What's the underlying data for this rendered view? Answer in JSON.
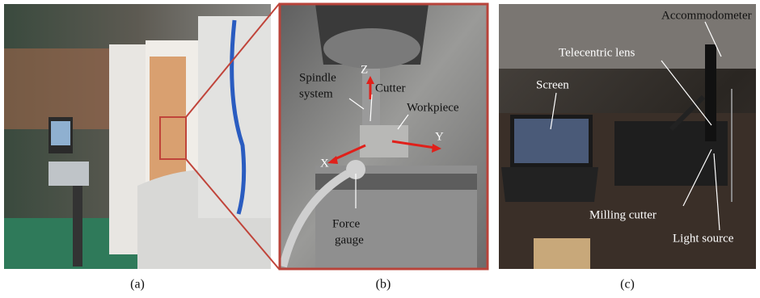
{
  "panels": [
    {
      "caption": "(a)"
    },
    {
      "caption": "(b)",
      "labels": [
        "Spindle",
        "system",
        "Z",
        "Cutter",
        "Workpiece",
        "Y",
        "X",
        "Force",
        "gauge"
      ]
    },
    {
      "caption": "(c)",
      "labels": [
        "Accommodometer",
        "Telecentric lens",
        "Screen",
        "Milling cutter",
        "Light source"
      ]
    }
  ]
}
